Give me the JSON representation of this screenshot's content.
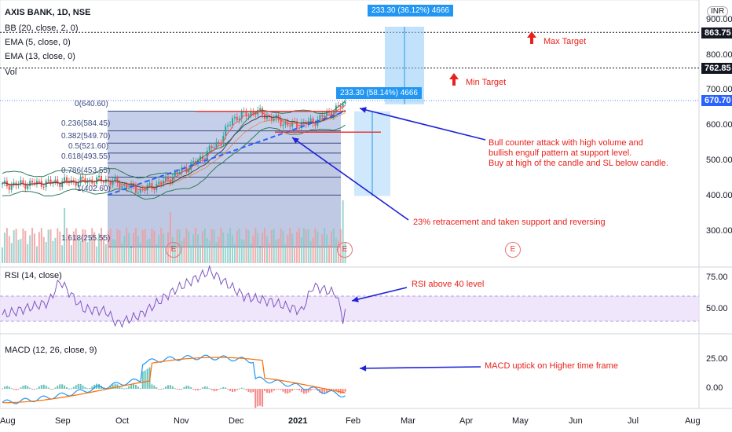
{
  "header": {
    "symbol": "AXIS BANK, 1D, NSE",
    "indicators": [
      "BB (20, close, 2, 0)",
      "EMA (5, close, 0)",
      "EMA (13, close, 0)",
      "Vol"
    ],
    "currency": "INR"
  },
  "price_scale": {
    "ticks": [
      "900.00",
      "800.00",
      "700.00",
      "600.00",
      "500.00",
      "400.00",
      "300.00"
    ],
    "badges": [
      {
        "value": "863.75",
        "style": "dark"
      },
      {
        "value": "762.85",
        "style": "dark"
      },
      {
        "value": "670.70",
        "style": "blue"
      }
    ]
  },
  "rsi": {
    "label": "RSI (14, close)",
    "ticks": [
      "75.00",
      "50.00"
    ]
  },
  "macd": {
    "label": "MACD (12, 26, close, 9)",
    "ticks": [
      "25.00",
      "0.00"
    ]
  },
  "time_axis": [
    "Aug",
    "Sep",
    "Oct",
    "Nov",
    "Dec",
    "2021",
    "Feb",
    "Mar",
    "Apr",
    "May",
    "Jun",
    "Jul",
    "Aug"
  ],
  "fib_levels": [
    {
      "ratio": "0",
      "price": "640.60"
    },
    {
      "ratio": "0.236",
      "price": "584.45"
    },
    {
      "ratio": "0.382",
      "price": "549.70"
    },
    {
      "ratio": "0.5",
      "price": "521.60"
    },
    {
      "ratio": "0.618",
      "price": "493.55"
    },
    {
      "ratio": "0.786",
      "price": "453.55"
    },
    {
      "ratio": "1",
      "price": "402.60"
    },
    {
      "ratio": "1.618",
      "price": "255.55"
    }
  ],
  "projections": [
    {
      "text": "233.30 (36.12%) 4666"
    },
    {
      "text": "233.30 (58.14%) 4666"
    }
  ],
  "earnings_marker": "E",
  "annotations": {
    "max_target": "Max Target",
    "min_target": "Min Target",
    "bull_note": [
      "Bull counter attack with high volume and",
      "bullish engulf pattern at support level.",
      "Buy at  high of the candle and SL below candle."
    ],
    "retracement_note": "23% retracement and taken support and reversing",
    "rsi_note": "RSI above 40 level",
    "macd_note": "MACD uptick on Higher time frame"
  },
  "colors": {
    "up": "#26a69a",
    "down": "#ef5350",
    "annotation": "#e8211b",
    "arrow": "#1e22d6",
    "bb": "#2e7d57",
    "fib": "#5a6ba8"
  },
  "chart_data": {
    "type": "candlestick",
    "symbol": "AXIS BANK",
    "interval": "1D",
    "y_range": [
      220,
      930
    ],
    "price_levels": {
      "max_target": 863.75,
      "min_target": 762.85,
      "last": 670.7
    },
    "monthly_close_approx": [
      {
        "month": "Aug",
        "close": 430
      },
      {
        "month": "Sep",
        "close": 445
      },
      {
        "month": "Oct",
        "close": 470
      },
      {
        "month": "Nov",
        "close": 620
      },
      {
        "month": "Dec",
        "close": 610
      },
      {
        "month": "Jan",
        "close": 665
      }
    ],
    "rsi_range": [
      30,
      90
    ],
    "rsi_bands": [
      40,
      60
    ],
    "macd_range": [
      -15,
      45
    ]
  }
}
